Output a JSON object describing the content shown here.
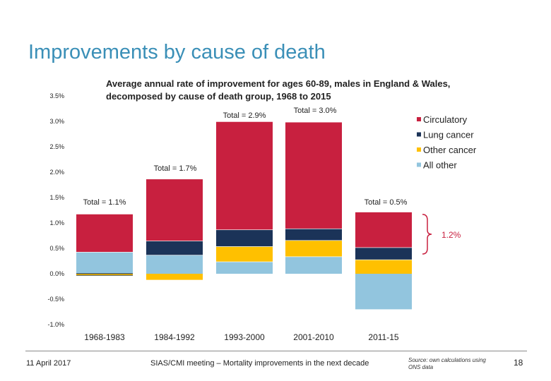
{
  "slide": {
    "title": "Improvements by cause of death",
    "footer_date": "11 April 2017",
    "footer_meeting": "SIAS/CMI meeting – Mortality improvements in the next decade",
    "footer_source": "Source: own calculations using ONS data",
    "page_number": "18"
  },
  "chart_data": {
    "type": "bar",
    "stacked": true,
    "title": "Average annual rate of improvement for ages 60-89, males in England & Wales, decomposed by cause of death group, 1968 to 2015",
    "categories": [
      "1968-1983",
      "1984-1992",
      "1993-2000",
      "2001-2010",
      "2011-15"
    ],
    "series": [
      {
        "name": "All other",
        "color": "#92c5de",
        "values": [
          0.43,
          0.37,
          0.24,
          0.34,
          -0.7
        ]
      },
      {
        "name": "Other cancer",
        "color": "#ffc000",
        "values": [
          -0.03,
          -0.12,
          0.3,
          0.32,
          0.28
        ]
      },
      {
        "name": "Lung cancer",
        "color": "#1b3358",
        "values": [
          -0.01,
          0.28,
          0.33,
          0.23,
          0.24
        ]
      },
      {
        "name": "Circulatory",
        "color": "#c8203f",
        "values": [
          0.74,
          1.21,
          2.12,
          2.09,
          0.69
        ]
      }
    ],
    "totals": [
      "Total = 1.1%",
      "Total = 1.7%",
      "Total = 2.9%",
      "Total = 3.0%",
      "Total = 0.5%"
    ],
    "ylim": [
      -1.0,
      3.5
    ],
    "y_ticks": [
      "3.5%",
      "3.0%",
      "2.5%",
      "2.0%",
      "1.5%",
      "1.0%",
      "0.5%",
      "0.0%",
      "-0.5%",
      "-1.0%"
    ],
    "y_tick_values": [
      3.5,
      3.0,
      2.5,
      2.0,
      1.5,
      1.0,
      0.5,
      0.0,
      -0.5,
      -1.0
    ],
    "legend": [
      "Circulatory",
      "Lung cancer",
      "Other cancer",
      "All other"
    ],
    "legend_colors": [
      "#c8203f",
      "#1b3358",
      "#ffc000",
      "#92c5de"
    ],
    "legend_position": "top-right",
    "annotation": "1.2%",
    "annotation_color": "#c8203f",
    "grid": false
  }
}
